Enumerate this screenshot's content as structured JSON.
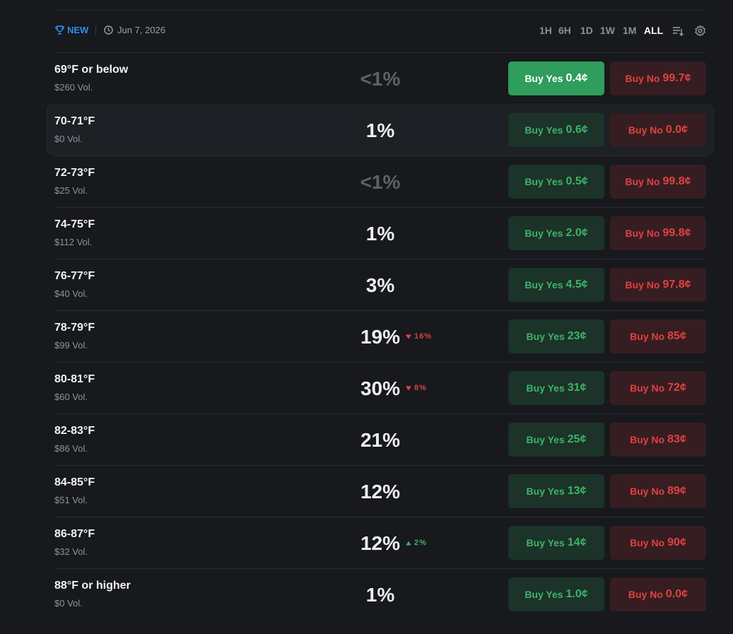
{
  "header": {
    "badge": "NEW",
    "date": "Jun 7, 2026",
    "ranges": [
      "1H",
      "6H",
      "1D",
      "1W",
      "1M",
      "ALL"
    ],
    "active_range": 5
  },
  "selected_row": 0,
  "hovered_row": 1,
  "rows": [
    {
      "label": "69°F or below",
      "volume": "$260 Vol.",
      "probability": "<1%",
      "yes_label": "Buy Yes",
      "yes_price": "0.4¢",
      "no_label": "Buy No",
      "no_price": "99.7¢"
    },
    {
      "label": "70-71°F",
      "volume": "$0 Vol.",
      "probability": "1%",
      "yes_label": "Buy Yes",
      "yes_price": "0.6¢",
      "no_label": "Buy No",
      "no_price": "0.0¢"
    },
    {
      "label": "72-73°F",
      "volume": "$25 Vol.",
      "probability": "<1%",
      "yes_label": "Buy Yes",
      "yes_price": "0.5¢",
      "no_label": "Buy No",
      "no_price": "99.8¢"
    },
    {
      "label": "74-75°F",
      "volume": "$112 Vol.",
      "probability": "1%",
      "yes_label": "Buy Yes",
      "yes_price": "2.0¢",
      "no_label": "Buy No",
      "no_price": "99.8¢"
    },
    {
      "label": "76-77°F",
      "volume": "$40 Vol.",
      "probability": "3%",
      "yes_label": "Buy Yes",
      "yes_price": "4.5¢",
      "no_label": "Buy No",
      "no_price": "97.8¢"
    },
    {
      "label": "78-79°F",
      "volume": "$99 Vol.",
      "probability": "19%",
      "change": {
        "text": "16%",
        "direction": "down"
      },
      "yes_label": "Buy Yes",
      "yes_price": "23¢",
      "no_label": "Buy No",
      "no_price": "85¢"
    },
    {
      "label": "80-81°F",
      "volume": "$60 Vol.",
      "probability": "30%",
      "change": {
        "text": "8%",
        "direction": "down"
      },
      "yes_label": "Buy Yes",
      "yes_price": "31¢",
      "no_label": "Buy No",
      "no_price": "72¢"
    },
    {
      "label": "82-83°F",
      "volume": "$86 Vol.",
      "probability": "21%",
      "yes_label": "Buy Yes",
      "yes_price": "25¢",
      "no_label": "Buy No",
      "no_price": "83¢"
    },
    {
      "label": "84-85°F",
      "volume": "$51 Vol.",
      "probability": "12%",
      "yes_label": "Buy Yes",
      "yes_price": "13¢",
      "no_label": "Buy No",
      "no_price": "89¢"
    },
    {
      "label": "86-87°F",
      "volume": "$32 Vol.",
      "probability": "12%",
      "change": {
        "text": "2%",
        "direction": "up"
      },
      "yes_label": "Buy Yes",
      "yes_price": "14¢",
      "no_label": "Buy No",
      "no_price": "90¢"
    },
    {
      "label": "88°F or higher",
      "volume": "$0 Vol.",
      "probability": "1%",
      "yes_label": "Buy Yes",
      "yes_price": "1.0¢",
      "no_label": "Buy No",
      "no_price": "0.0¢"
    }
  ]
}
